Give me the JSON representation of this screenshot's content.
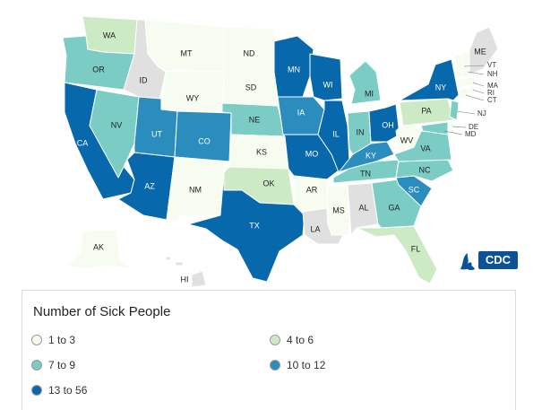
{
  "legend": {
    "title": "Number of Sick People",
    "items": [
      {
        "label": "1 to 3",
        "color": "#f7fcf0"
      },
      {
        "label": "4 to 6",
        "color": "#ccebc5"
      },
      {
        "label": "7 to 9",
        "color": "#7bccc4"
      },
      {
        "label": "10 to 12",
        "color": "#2b8cbe"
      },
      {
        "label": "13 to 56",
        "color": "#0868ac"
      }
    ]
  },
  "no_data_color": "#e0e0e0",
  "logo": {
    "text": "CDC"
  },
  "states": {
    "WA": "4 to 6",
    "OR": "7 to 9",
    "CA": "13 to 56",
    "NV": "7 to 9",
    "ID": "none",
    "MT": "1 to 3",
    "WY": "1 to 3",
    "UT": "10 to 12",
    "AZ": "13 to 56",
    "CO": "10 to 12",
    "NM": "1 to 3",
    "ND": "1 to 3",
    "SD": "1 to 3",
    "NE": "7 to 9",
    "KS": "1 to 3",
    "OK": "4 to 6",
    "TX": "13 to 56",
    "MN": "13 to 56",
    "IA": "10 to 12",
    "MO": "13 to 56",
    "AR": "1 to 3",
    "LA": "none",
    "WI": "13 to 56",
    "IL": "13 to 56",
    "MS": "1 to 3",
    "MI": "7 to 9",
    "IN": "7 to 9",
    "KY": "10 to 12",
    "TN": "7 to 9",
    "AL": "none",
    "OH": "13 to 56",
    "GA": "7 to 9",
    "FL": "4 to 6",
    "SC": "10 to 12",
    "NC": "7 to 9",
    "VA": "7 to 9",
    "WV": "1 to 3",
    "PA": "4 to 6",
    "NY": "13 to 56",
    "NJ": "7 to 9",
    "DE": "1 to 3",
    "MD": "7 to 9",
    "CT": "1 to 3",
    "RI": "1 to 3",
    "MA": "1 to 3",
    "VT": "1 to 3",
    "NH": "1 to 3",
    "ME": "none",
    "AK": "1 to 3",
    "HI": "none"
  }
}
